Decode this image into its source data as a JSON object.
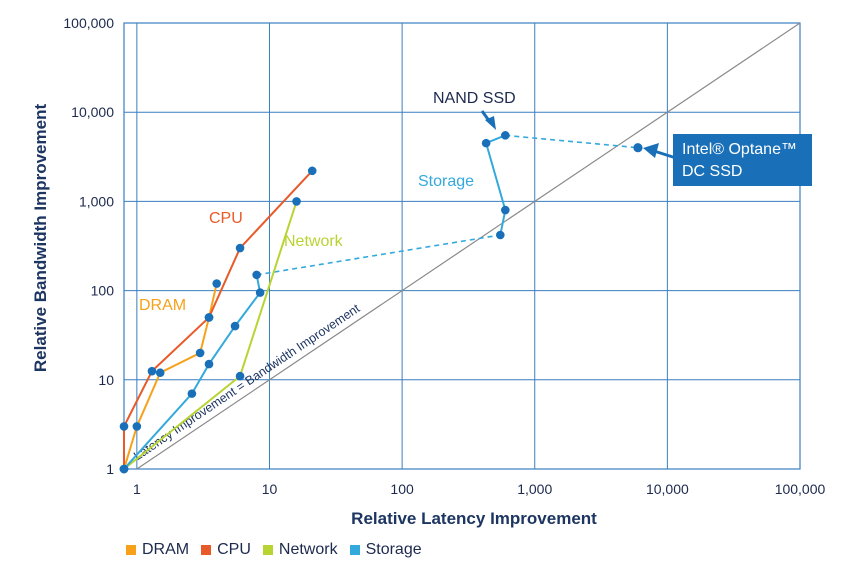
{
  "chart_data": {
    "type": "scatter",
    "xlabel": "Relative Latency Improvement",
    "ylabel": "Relative Bandwidth Improvement",
    "xscale": "log",
    "yscale": "log",
    "xlim": [
      0.8,
      100000
    ],
    "ylim": [
      1,
      100000
    ],
    "grid": true,
    "x_ticks": [
      1,
      10,
      100,
      1000,
      10000,
      100000
    ],
    "x_tick_labels": [
      "1",
      "10",
      "100",
      "1,000",
      "10,000",
      "100,000"
    ],
    "y_ticks": [
      1,
      10,
      100,
      1000,
      10000,
      100000
    ],
    "y_tick_labels": [
      "1",
      "10",
      "100",
      "1,000",
      "10,000",
      "100,000"
    ],
    "series": [
      {
        "name": "DRAM",
        "label": "DRAM",
        "color": "#f7a11a",
        "points": [
          [
            0.8,
            1
          ],
          [
            1,
            3
          ],
          [
            1.5,
            12
          ],
          [
            3,
            20
          ],
          [
            3.5,
            50
          ],
          [
            4,
            120
          ]
        ]
      },
      {
        "name": "CPU",
        "label": "CPU",
        "color": "#e85a2a",
        "points": [
          [
            0.8,
            1
          ],
          [
            0.8,
            3
          ],
          [
            1.3,
            12.5
          ],
          [
            3.5,
            50
          ],
          [
            6,
            300
          ],
          [
            21,
            2200
          ]
        ]
      },
      {
        "name": "Network",
        "label": "Network",
        "color": "#b8d433",
        "points": [
          [
            0.8,
            1
          ],
          [
            6,
            11
          ],
          [
            16,
            1000
          ]
        ]
      },
      {
        "name": "Storage",
        "label": "Storage",
        "color": "#33a9dc",
        "points": [
          [
            0.8,
            1
          ],
          [
            2.6,
            7
          ],
          [
            3.5,
            15
          ],
          [
            5.5,
            40
          ],
          [
            8.5,
            95
          ],
          [
            8,
            150
          ]
        ]
      },
      {
        "name": "Storage (SSD)",
        "label": "Storage",
        "color": "#33a9dc",
        "points": [
          [
            550,
            420
          ],
          [
            600,
            800
          ],
          [
            430,
            4500
          ],
          [
            600,
            5500
          ]
        ]
      }
    ],
    "dashed_connectors": [
      {
        "from": [
          8,
          150
        ],
        "to": [
          550,
          420
        ],
        "color": "#33a9dc"
      },
      {
        "from": [
          600,
          5500
        ],
        "to": [
          6000,
          4000
        ],
        "color": "#33a9dc"
      }
    ],
    "highlight_point": {
      "x": 6000,
      "y": 4000,
      "color": "#1a70b8"
    },
    "diagonal": {
      "from": [
        1,
        1
      ],
      "to": [
        100000,
        100000
      ],
      "label": "Latency Improvement = Bandwidth Improvement"
    },
    "annotations": {
      "nand_ssd": "NAND SSD",
      "optane_line1": "Intel® Optane™",
      "optane_line2": "DC SSD"
    },
    "legend": {
      "placement": "bottom-left",
      "items": [
        {
          "label": "DRAM",
          "color": "#f7a11a"
        },
        {
          "label": "CPU",
          "color": "#e85a2a"
        },
        {
          "label": "Network",
          "color": "#b8d433"
        },
        {
          "label": "Storage",
          "color": "#33a9dc"
        }
      ]
    }
  }
}
